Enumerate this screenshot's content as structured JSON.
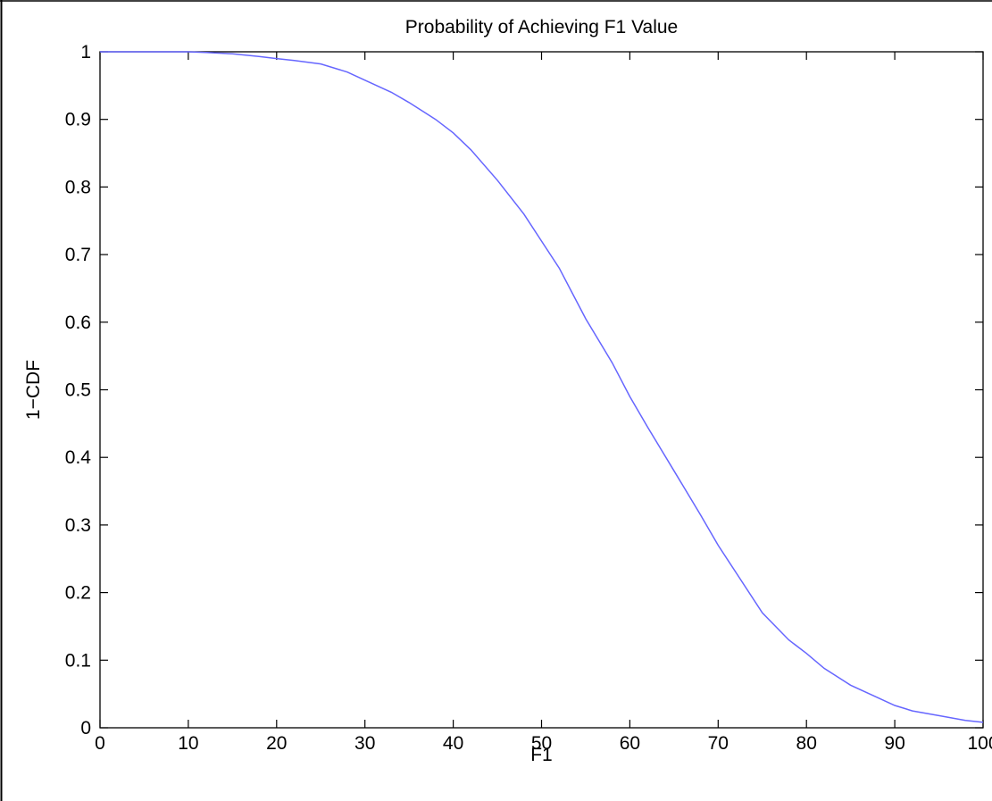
{
  "chart_data": {
    "type": "line",
    "title": "Probability of Achieving F1 Value",
    "xlabel": "F1",
    "ylabel": "1−CDF",
    "xlim": [
      0,
      100
    ],
    "ylim": [
      0,
      1
    ],
    "x_ticks": [
      0,
      10,
      20,
      30,
      40,
      50,
      60,
      70,
      80,
      90,
      100
    ],
    "y_ticks": [
      0,
      0.1,
      0.2,
      0.3,
      0.4,
      0.5,
      0.6,
      0.7,
      0.8,
      0.9,
      1
    ],
    "x_tick_labels": [
      "0",
      "10",
      "20",
      "30",
      "40",
      "50",
      "60",
      "70",
      "80",
      "90",
      "100"
    ],
    "y_tick_labels": [
      "0",
      "0.1",
      "0.2",
      "0.3",
      "0.4",
      "0.5",
      "0.6",
      "0.7",
      "0.8",
      "0.9",
      "1"
    ],
    "grid": false,
    "line_color": "#6666ff",
    "series": [
      {
        "x": [
          0,
          5,
          10,
          12,
          15,
          18,
          20,
          22,
          25,
          28,
          30,
          33,
          35,
          38,
          40,
          42,
          45,
          48,
          50,
          52,
          55,
          58,
          60,
          62,
          65,
          68,
          70,
          72,
          75,
          78,
          80,
          82,
          85,
          88,
          90,
          92,
          95,
          98,
          100
        ],
        "y": [
          1.0,
          1.0,
          1.0,
          0.999,
          0.997,
          0.993,
          0.99,
          0.987,
          0.982,
          0.97,
          0.958,
          0.94,
          0.925,
          0.9,
          0.88,
          0.855,
          0.81,
          0.76,
          0.72,
          0.68,
          0.605,
          0.54,
          0.49,
          0.445,
          0.38,
          0.315,
          0.27,
          0.23,
          0.17,
          0.13,
          0.11,
          0.088,
          0.063,
          0.045,
          0.033,
          0.025,
          0.018,
          0.011,
          0.008
        ]
      }
    ]
  }
}
